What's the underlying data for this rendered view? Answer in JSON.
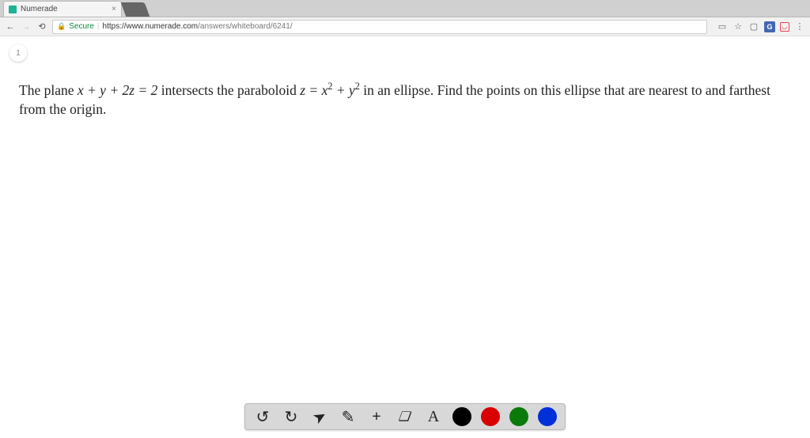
{
  "browser": {
    "tab_title": "Numerade",
    "url_secure_label": "Secure",
    "url_host": "https://www.numerade.com",
    "url_path": "/answers/whiteboard/6241/"
  },
  "page": {
    "step_number": "1",
    "problem_parts": {
      "p1": "The plane ",
      "eq1": "x + y + 2z = 2",
      "p2": " intersects the paraboloid ",
      "eq2_lhs": "z = x",
      "eq2_sup1": "2",
      "eq2_mid": " + y",
      "eq2_sup2": "2",
      "p3": " in an ellipse. Find the points on this ellipse that are nearest to and farthest from the origin."
    }
  },
  "toolbar": {
    "undo": "↺",
    "redo": "↻",
    "pointer": "➤",
    "pencil": "✎",
    "plus": "+",
    "eraser": "❏",
    "text": "A",
    "colors": {
      "black": "#000000",
      "red": "#d90000",
      "green": "#0a7a0a",
      "blue": "#0030d8"
    }
  }
}
